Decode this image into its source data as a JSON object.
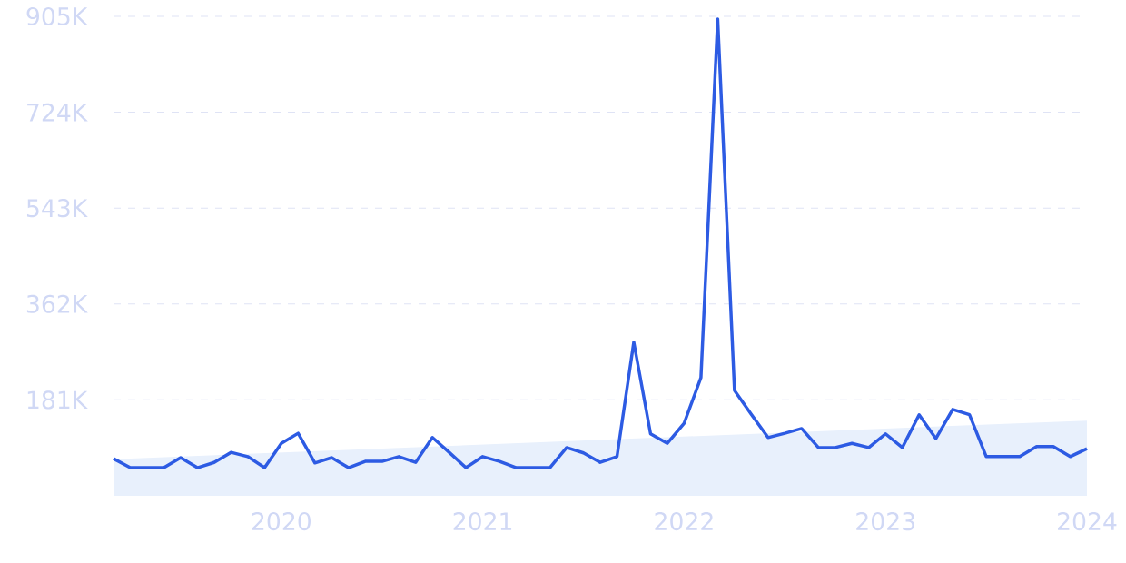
{
  "chart_data": {
    "type": "line",
    "x": [
      "2019-03",
      "2019-04",
      "2019-05",
      "2019-06",
      "2019-07",
      "2019-08",
      "2019-09",
      "2019-10",
      "2019-11",
      "2019-12",
      "2020-01",
      "2020-02",
      "2020-03",
      "2020-04",
      "2020-05",
      "2020-06",
      "2020-07",
      "2020-08",
      "2020-09",
      "2020-10",
      "2020-11",
      "2020-12",
      "2021-01",
      "2021-02",
      "2021-03",
      "2021-04",
      "2021-05",
      "2021-06",
      "2021-07",
      "2021-08",
      "2021-09",
      "2021-10",
      "2021-11",
      "2021-12",
      "2022-01",
      "2022-02",
      "2022-03",
      "2022-04",
      "2022-05",
      "2022-06",
      "2022-07",
      "2022-08",
      "2022-09",
      "2022-10",
      "2022-11",
      "2022-12",
      "2023-01",
      "2023-02",
      "2023-03",
      "2023-04",
      "2023-05",
      "2023-06",
      "2023-07",
      "2023-08",
      "2023-09",
      "2023-10",
      "2023-11",
      "2023-12",
      "2024-01"
    ],
    "series": [
      {
        "type": "area",
        "color": "#e8f0fc",
        "x": [
          "2019-03",
          "2024-01"
        ],
        "values": [
          69000,
          142000
        ]
      },
      {
        "color": "#2d5be3",
        "values": [
          70000,
          53000,
          53000,
          53000,
          72000,
          53000,
          63000,
          82000,
          74000,
          53000,
          99000,
          118000,
          62000,
          72000,
          53000,
          65000,
          65000,
          74000,
          63000,
          110000,
          82000,
          53000,
          74000,
          65000,
          53000,
          53000,
          53000,
          91000,
          81000,
          63000,
          74000,
          290000,
          117000,
          99000,
          137000,
          223000,
          900000,
          199000,
          154000,
          110000,
          118000,
          127000,
          91000,
          91000,
          99000,
          91000,
          117000,
          91000,
          153000,
          108000,
          163000,
          153000,
          74000,
          74000,
          74000,
          93000,
          93000,
          74000,
          89000
        ]
      }
    ],
    "xlim": [
      "2019-03",
      "2024-01"
    ],
    "xticks": [
      "2020",
      "2021",
      "2022",
      "2023",
      "2024"
    ],
    "ylim": [
      0,
      905000
    ],
    "yticks": [
      {
        "value": 181000,
        "label": "181K"
      },
      {
        "value": 362000,
        "label": "362K"
      },
      {
        "value": 543000,
        "label": "543K"
      },
      {
        "value": 724000,
        "label": "724K"
      },
      {
        "value": 905000,
        "label": "905K"
      }
    ],
    "grid": "y",
    "legend": false,
    "marker": "none",
    "line_style": "solid"
  }
}
